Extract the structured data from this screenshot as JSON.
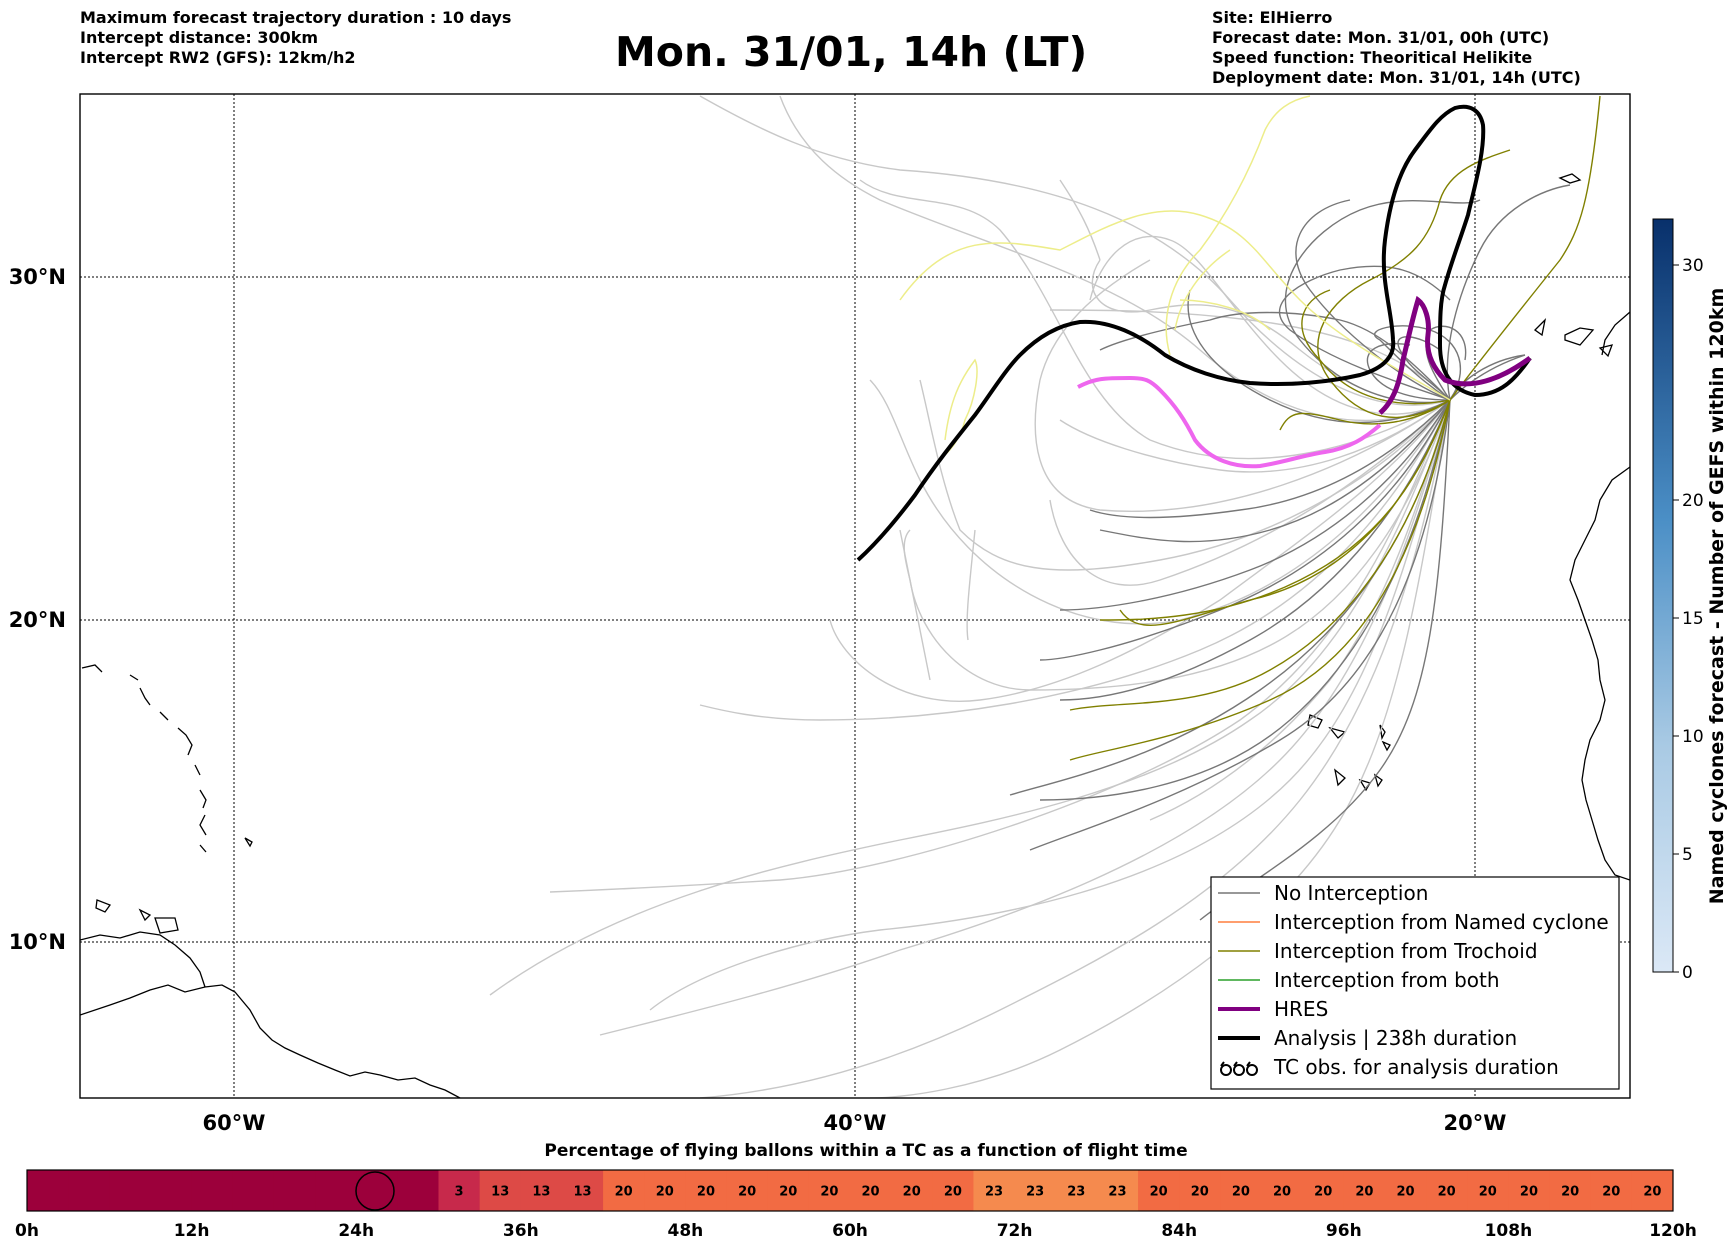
{
  "header": {
    "left_lines": [
      "Maximum forecast trajectory duration : 10 days",
      "Intercept distance: 300km",
      "Intercept RW2 (GFS):  12km/h2"
    ],
    "title": "Mon. 31/01, 14h (LT)",
    "right_lines": [
      "Site: ElHierro",
      "Forecast date: Mon. 31/01, 00h (UTC)",
      "Speed function: Theoritical Helikite",
      "Deployment date: Mon. 31/01, 14h (UTC)"
    ]
  },
  "map": {
    "lon_labels": [
      "60°W",
      "40°W",
      "20°W"
    ],
    "lat_labels": [
      "30°N",
      "20°N",
      "10°N"
    ]
  },
  "legend": {
    "items": [
      {
        "label": "No Interception",
        "color": "#777777",
        "style": "thin"
      },
      {
        "label": "Interception from Named cyclone",
        "color": "#ff7f3f",
        "style": "thin"
      },
      {
        "label": "Interception from Trochoid",
        "color": "#808000",
        "style": "thin"
      },
      {
        "label": "Interception from both",
        "color": "#2ca02c",
        "style": "thin"
      },
      {
        "label": "HRES",
        "color": "#800080",
        "style": "thick"
      },
      {
        "label": "Analysis | 238h duration",
        "color": "#000000",
        "style": "thick"
      },
      {
        "label": "TC obs. for analysis duration",
        "color": "#000000",
        "style": "symbol"
      }
    ]
  },
  "colorbar": {
    "label": "Named cyclones forecast - Number of GEFS within 120km",
    "ticks": [
      "0",
      "5",
      "10",
      "15",
      "20",
      "30"
    ]
  },
  "timeline": {
    "title": "Percentage of flying ballons within a TC as a function of flight time",
    "tick_labels": [
      "0h",
      "12h",
      "24h",
      "36h",
      "48h",
      "60h",
      "72h",
      "84h",
      "96h",
      "108h",
      "120h"
    ],
    "cells": [
      "",
      "",
      "",
      "",
      "",
      "",
      "",
      "",
      "",
      "",
      "3",
      "13",
      "13",
      "13",
      "20",
      "20",
      "20",
      "20",
      "20",
      "20",
      "20",
      "20",
      "20",
      "23",
      "23",
      "23",
      "23",
      "20",
      "20",
      "20",
      "20",
      "20",
      "20",
      "20",
      "20",
      "20",
      "20",
      "20",
      "20",
      "20"
    ]
  }
}
